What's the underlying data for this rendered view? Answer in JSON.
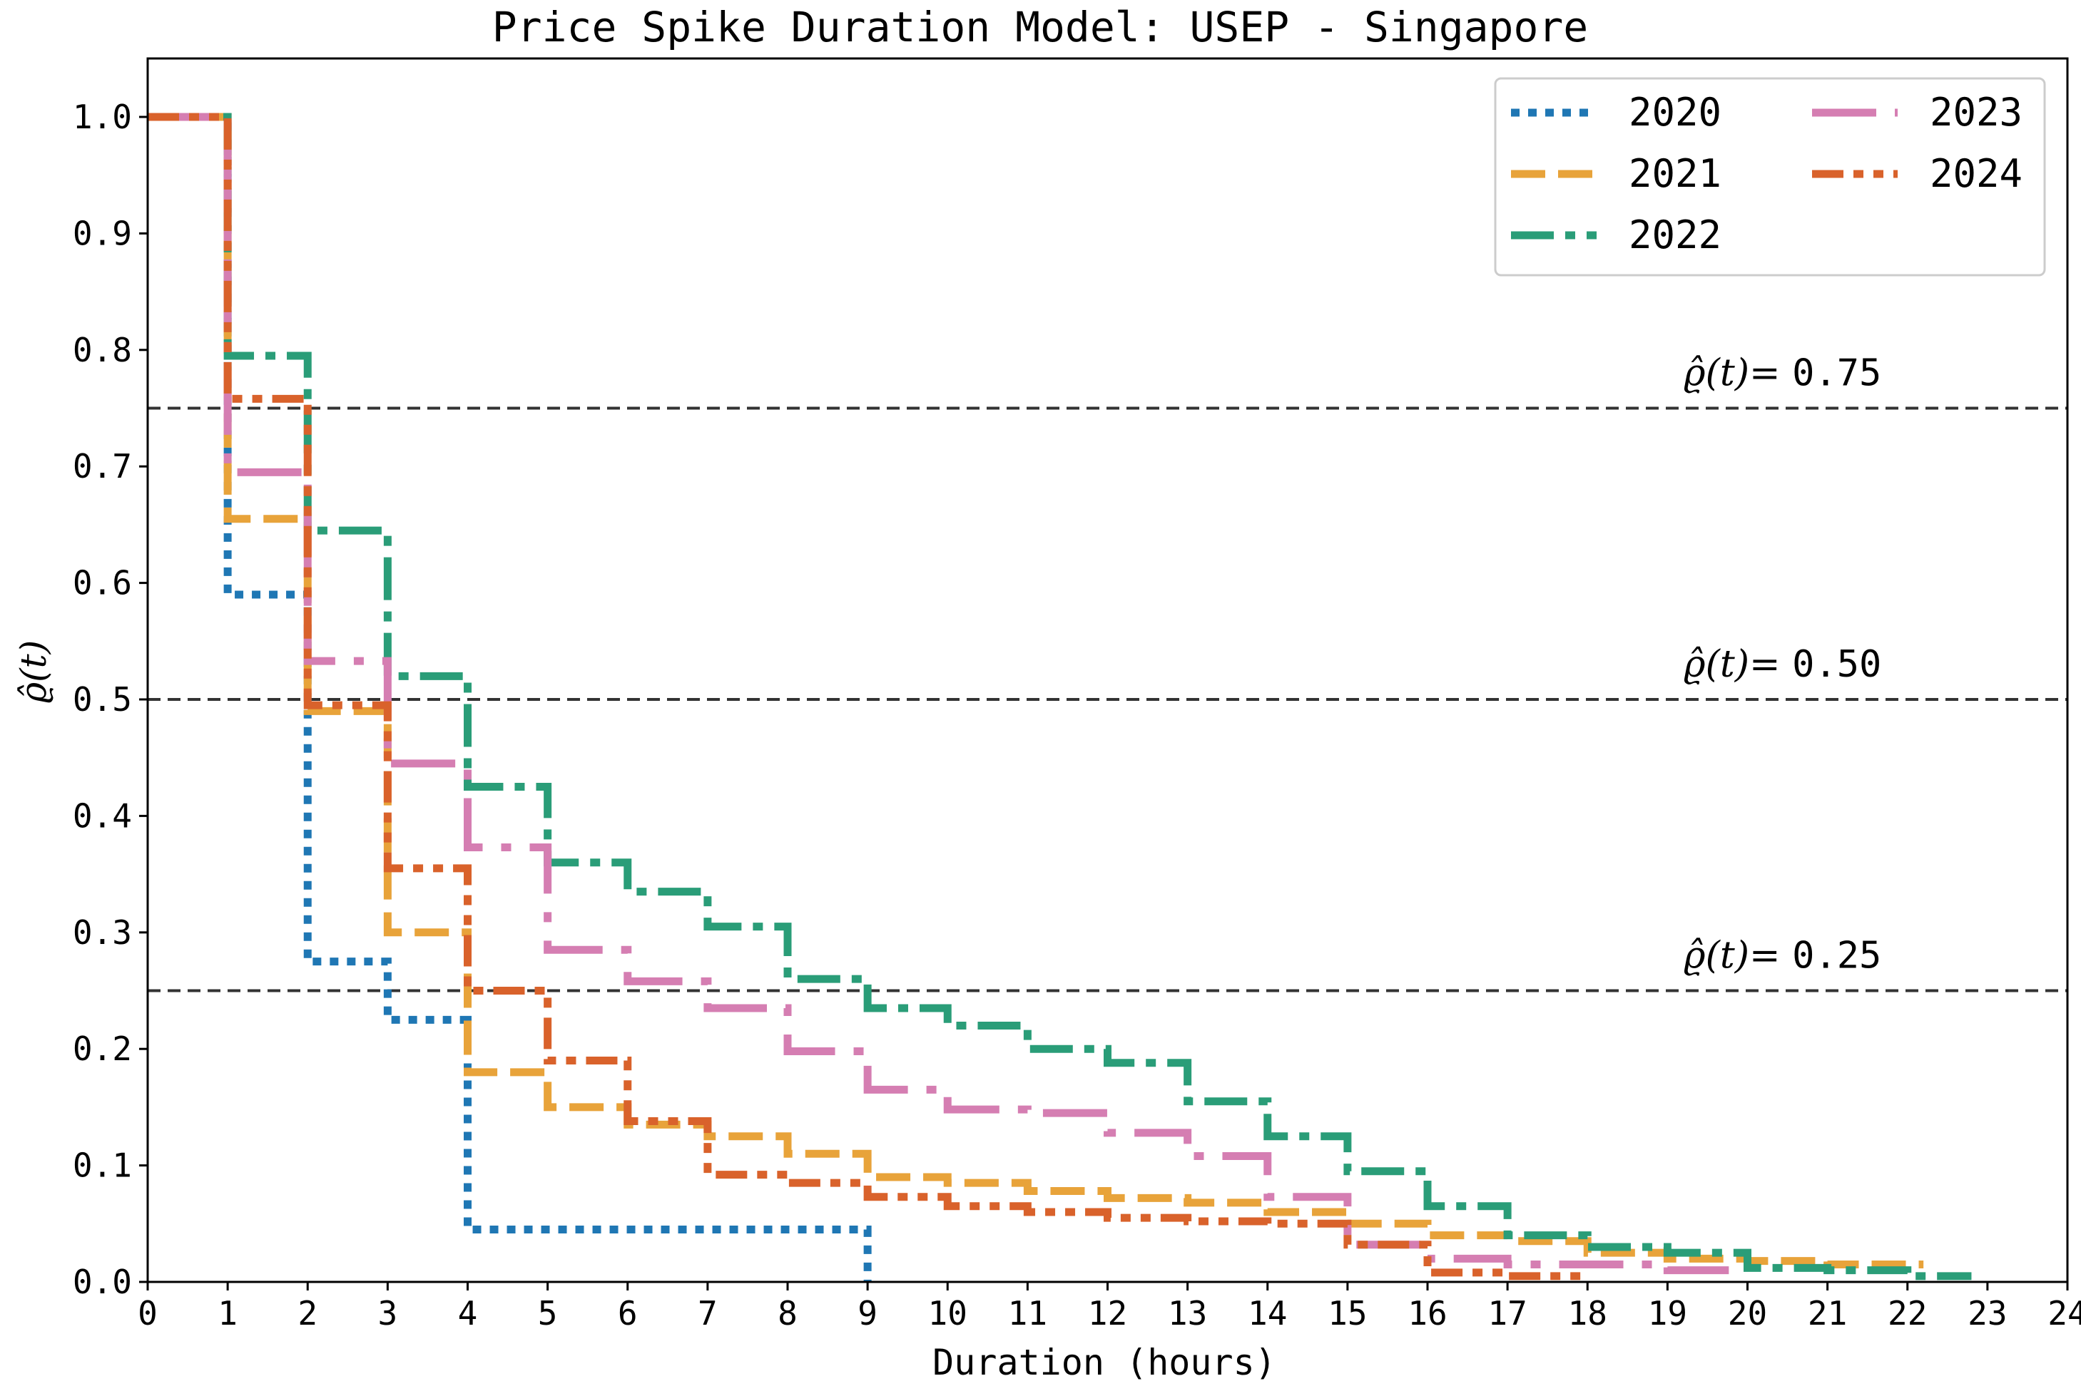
{
  "chart_data": {
    "type": "line",
    "step": true,
    "title": "Price Spike Duration Model: USEP - Singapore",
    "xlabel": "Duration (hours)",
    "ylabel": "ϱ̂(t)",
    "xlim": [
      0,
      24
    ],
    "ylim": [
      0,
      1.0
    ],
    "xticks": [
      0,
      1,
      2,
      3,
      4,
      5,
      6,
      7,
      8,
      9,
      10,
      11,
      12,
      13,
      14,
      15,
      16,
      17,
      18,
      19,
      20,
      21,
      22,
      23,
      24
    ],
    "xtick_labels": [
      "0",
      "1",
      "2",
      "3",
      "4",
      "5",
      "6",
      "7",
      "8",
      "9",
      "10",
      "11",
      "12",
      "13",
      "14",
      "15",
      "16",
      "17",
      "18",
      "19",
      "20",
      "21",
      "22",
      "23",
      "24"
    ],
    "yticks": [
      0.0,
      0.1,
      0.2,
      0.3,
      0.4,
      0.5,
      0.6,
      0.7,
      0.8,
      0.9,
      1.0
    ],
    "ytick_labels": [
      "0.0",
      "0.1",
      "0.2",
      "0.3",
      "0.4",
      "0.5",
      "0.6",
      "0.7",
      "0.8",
      "0.9",
      "1.0"
    ],
    "grid": false,
    "legend_position": "top-right",
    "series": [
      {
        "name": "2020",
        "color": "#1f77b4",
        "style": "dotted",
        "x": [
          0,
          1,
          2,
          3,
          4,
          9
        ],
        "y": [
          1.0,
          0.59,
          0.275,
          0.225,
          0.045,
          0.0
        ]
      },
      {
        "name": "2021",
        "color": "#e8a33a",
        "style": "dashed",
        "x": [
          0,
          1,
          2,
          3,
          4,
          5,
          6,
          7,
          8,
          9,
          10,
          11,
          12,
          13,
          14,
          15,
          16,
          17,
          18,
          19,
          20,
          21,
          22.2
        ],
        "y": [
          1.0,
          0.655,
          0.49,
          0.3,
          0.18,
          0.15,
          0.135,
          0.125,
          0.11,
          0.09,
          0.085,
          0.078,
          0.072,
          0.068,
          0.06,
          0.05,
          0.04,
          0.035,
          0.025,
          0.02,
          0.018,
          0.015,
          0.015
        ]
      },
      {
        "name": "2022",
        "color": "#2a9d78",
        "style": "dashdot",
        "x": [
          0,
          1,
          2,
          3,
          4,
          5,
          6,
          7,
          8,
          9,
          10,
          11,
          12,
          13,
          14,
          15,
          16,
          17,
          18,
          19,
          20,
          21,
          22,
          22.8
        ],
        "y": [
          1.0,
          0.795,
          0.645,
          0.52,
          0.425,
          0.36,
          0.335,
          0.305,
          0.26,
          0.235,
          0.22,
          0.2,
          0.188,
          0.155,
          0.125,
          0.095,
          0.065,
          0.04,
          0.03,
          0.025,
          0.012,
          0.01,
          0.005,
          0.005
        ]
      },
      {
        "name": "2023",
        "color": "#d57eb2",
        "style": "longdash",
        "x": [
          0,
          1,
          2,
          3,
          4,
          5,
          6,
          7,
          8,
          9,
          10,
          11,
          12,
          13,
          14,
          15,
          16,
          17,
          18,
          19,
          19.8
        ],
        "y": [
          1.0,
          0.695,
          0.533,
          0.445,
          0.373,
          0.285,
          0.258,
          0.235,
          0.198,
          0.165,
          0.148,
          0.145,
          0.128,
          0.108,
          0.073,
          0.032,
          0.02,
          0.015,
          0.015,
          0.01,
          0.005
        ]
      },
      {
        "name": "2024",
        "color": "#d9622b",
        "style": "dashdotdot",
        "x": [
          0,
          1,
          2,
          3,
          4,
          5,
          6,
          7,
          8,
          9,
          10,
          11,
          12,
          13,
          14,
          15,
          16,
          17,
          18
        ],
        "y": [
          1.0,
          0.758,
          0.495,
          0.355,
          0.25,
          0.19,
          0.138,
          0.092,
          0.085,
          0.073,
          0.065,
          0.06,
          0.055,
          0.052,
          0.05,
          0.032,
          0.008,
          0.005,
          0.005
        ]
      }
    ],
    "reference_lines": [
      {
        "y": 0.75,
        "label_prefix": "ϱ̂(t)=",
        "label_value": "0.75"
      },
      {
        "y": 0.5,
        "label_prefix": "ϱ̂(t)=",
        "label_value": "0.50"
      },
      {
        "y": 0.25,
        "label_prefix": "ϱ̂(t)=",
        "label_value": "0.25"
      }
    ]
  }
}
